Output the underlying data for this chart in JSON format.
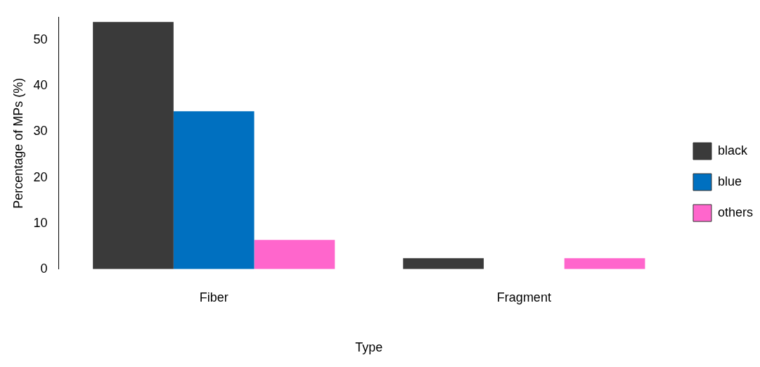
{
  "chart_data": {
    "type": "bar",
    "xlabel": "Type",
    "ylabel": "Percentage of MPs (%)",
    "categories": [
      "Fiber",
      "Fragment"
    ],
    "series": [
      {
        "name": "black",
        "color": "#3a3a3a",
        "values": [
          54,
          2.4
        ]
      },
      {
        "name": "blue",
        "color": "#0070c0",
        "values": [
          34.5,
          0
        ]
      },
      {
        "name": "others",
        "color": "#ff66cc",
        "values": [
          6.4,
          2.4
        ]
      }
    ],
    "ylim": [
      0,
      55
    ],
    "yticks": [
      0,
      10,
      20,
      30,
      40,
      50
    ],
    "grid": false,
    "legend": "right"
  }
}
